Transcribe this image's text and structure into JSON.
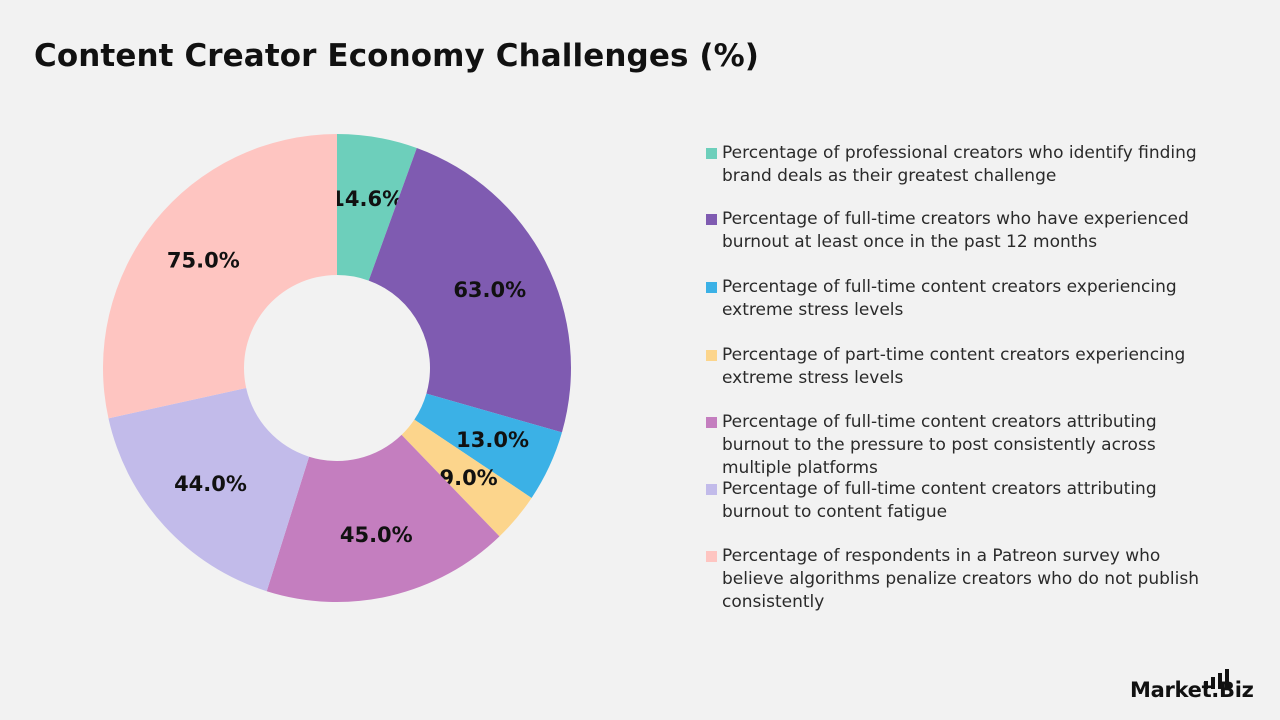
{
  "chart_data": {
    "type": "donut",
    "title": "Content Creator Economy Challenges (%)",
    "categories": [
      "Percentage of professional creators who identify finding brand deals as their greatest challenge",
      "Percentage of full-time creators who have experienced burnout at least once in the past 12 months",
      "Percentage of full-time content creators experiencing extreme stress levels",
      "Percentage of part-time content creators experiencing extreme stress levels",
      "Percentage of full-time content creators attributing burnout to the pressure to post consistently across multiple platforms",
      "Percentage of full-time content creators attributing burnout to content fatigue",
      "Percentage of respondents in a Patreon survey who believe algorithms penalize creators who do not publish consistently"
    ],
    "values": [
      14.6,
      63.0,
      13.0,
      9.0,
      45.0,
      44.0,
      75.0
    ],
    "value_labels": [
      "14.6%",
      "63.0%",
      "13.0%",
      "9.0%",
      "45.0%",
      "44.0%",
      "75.0%"
    ],
    "colors": [
      "#6dcfbb",
      "#7f5bb1",
      "#3bb1e6",
      "#fcd58c",
      "#c47ebf",
      "#c2bbea",
      "#fec5c1"
    ],
    "legend": "right"
  },
  "branding": {
    "logo_text": "Market.Biz"
  }
}
